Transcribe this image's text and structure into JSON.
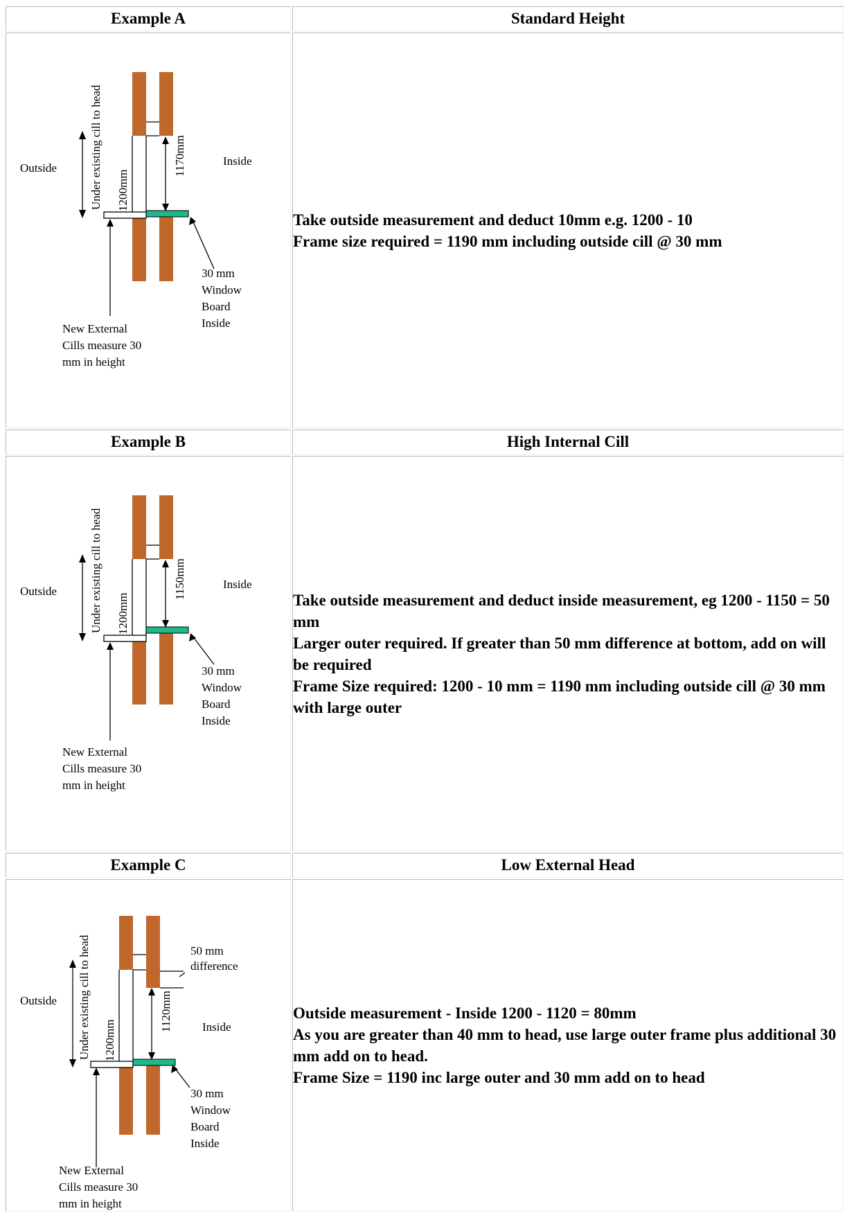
{
  "colors": {
    "brick": "#c0672c",
    "window_board": "#1db98a",
    "line": "#000000"
  },
  "sections": [
    {
      "example": "Example A",
      "title": "Standard Height",
      "diagram": {
        "outside": "Outside",
        "inside": "Inside",
        "vertical_label": "Under existing cill to head",
        "outside_dim": "1200mm",
        "inside_dim": "1170mm",
        "board_note": [
          "30 mm",
          "Window",
          "Board",
          "Inside"
        ],
        "cill_note": [
          "New External",
          "Cills measure 30",
          "mm in height"
        ]
      },
      "lines": [
        "Take outside measurement and deduct 10mm e.g. 1200 - 10",
        "Frame size required = 1190 mm including outside cill @ 30 mm"
      ]
    },
    {
      "example": "Example B",
      "title": "High Internal Cill",
      "diagram": {
        "outside": "Outside",
        "inside": "Inside",
        "vertical_label": "Under existing cill to head",
        "outside_dim": "1200mm",
        "inside_dim": "1150mm",
        "board_note": [
          "30 mm",
          "Window",
          "Board",
          "Inside"
        ],
        "cill_note": [
          "New External",
          "Cills measure 30",
          "mm in height"
        ]
      },
      "lines": [
        "Take outside measurement and deduct inside measurement, eg 1200 - 1150 = 50 mm",
        "Larger outer required. If greater than 50 mm difference at bottom, add on will be required",
        "Frame Size required: 1200 - 10 mm = 1190 mm including outside cill @ 30 mm with large outer"
      ]
    },
    {
      "example": "Example C",
      "title": "Low External Head",
      "diagram": {
        "outside": "Outside",
        "inside": "Inside",
        "vertical_label": "Under existing cill to head",
        "outside_dim": "1200mm",
        "inside_dim": "1120mm",
        "difference_note": [
          "50 mm",
          "difference"
        ],
        "board_note": [
          "30 mm",
          "Window",
          "Board",
          "Inside"
        ],
        "cill_note": [
          "New External",
          "Cills measure 30",
          "mm in height"
        ]
      },
      "lines": [
        "Outside measurement - Inside 1200 - 1120 = 80mm",
        "As you are greater than 40 mm to head, use large outer frame plus additional 30 mm add on to head.",
        "Frame Size = 1190 inc large outer and 30 mm add on to head"
      ]
    }
  ]
}
